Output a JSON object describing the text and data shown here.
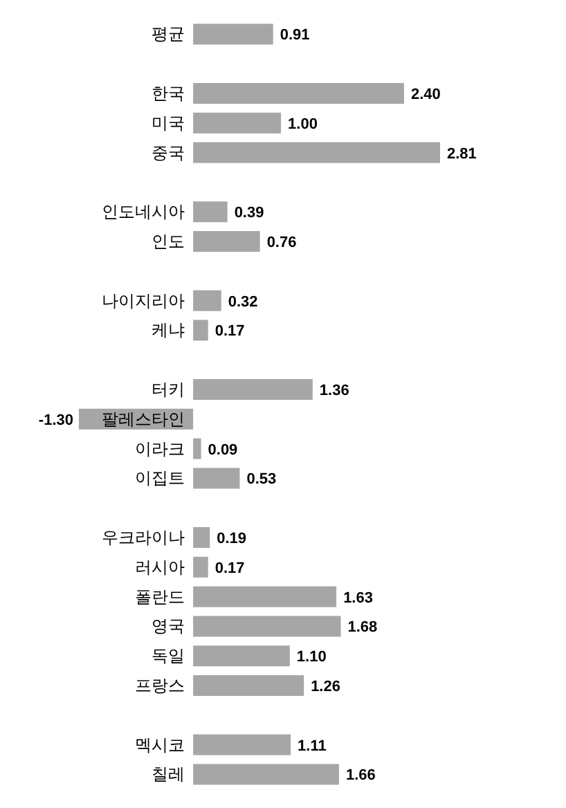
{
  "chart_data": {
    "type": "bar",
    "orientation": "horizontal",
    "categories": [
      "평균",
      null,
      "한국",
      "미국",
      "중국",
      null,
      "인도네시아",
      "인도",
      null,
      "나이지리아",
      "케냐",
      null,
      "터키",
      "팔레스타인",
      "이라크",
      "이집트",
      null,
      "우크라이나",
      "러시아",
      "폴란드",
      "영국",
      "독일",
      "프랑스",
      null,
      "멕시코",
      "칠레"
    ],
    "values": [
      0.91,
      null,
      2.4,
      1.0,
      2.81,
      null,
      0.39,
      0.76,
      null,
      0.32,
      0.17,
      null,
      1.36,
      -1.3,
      0.09,
      0.53,
      null,
      0.19,
      0.17,
      1.63,
      1.68,
      1.1,
      1.26,
      null,
      1.11,
      1.66
    ],
    "value_labels": [
      "0.91",
      null,
      "2.40",
      "1.00",
      "2.81",
      null,
      "0.39",
      "0.76",
      null,
      "0.32",
      "0.17",
      null,
      "1.36",
      "-1.30",
      "0.09",
      "0.53",
      null,
      "0.19",
      "0.17",
      "1.63",
      "1.68",
      "1.10",
      "1.26",
      null,
      "1.11",
      "1.66"
    ],
    "color": "#a6a6a6"
  }
}
